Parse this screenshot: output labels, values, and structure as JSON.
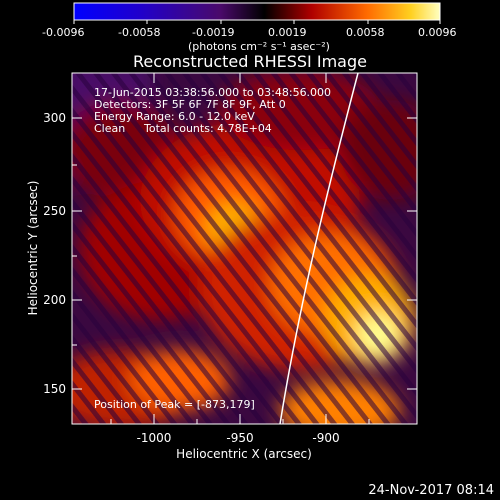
{
  "colorbar": {
    "ticks": [
      "-0.0096",
      "-0.0058",
      "-0.0019",
      "0.0019",
      "0.0058",
      "0.0096"
    ],
    "unit_label": "(photons cm⁻² s⁻¹ asec⁻²)"
  },
  "image": {
    "title": "Reconstructed RHESSI Image",
    "info": [
      "17-Jun-2015 03:38:56.000 to 03:48:56.000",
      "Detectors: 3F 5F 6F 7F 8F 9F, Att 0",
      "Energy Range: 6.0 - 12.0 keV",
      "Clean",
      "Total counts: 4.78E+04"
    ],
    "peak_label": "Position of Peak = [-873,179]"
  },
  "axes": {
    "xlabel": "Heliocentric X (arcsec)",
    "ylabel": "Heliocentric Y (arcsec)",
    "xticks": [
      "-1000",
      "-950",
      "-900"
    ],
    "yticks": [
      "150",
      "200",
      "250",
      "300"
    ]
  },
  "footer": {
    "timestamp": "24-Nov-2017 08:14"
  },
  "colors": {
    "background": "#000000",
    "limb": "#ffffff"
  }
}
